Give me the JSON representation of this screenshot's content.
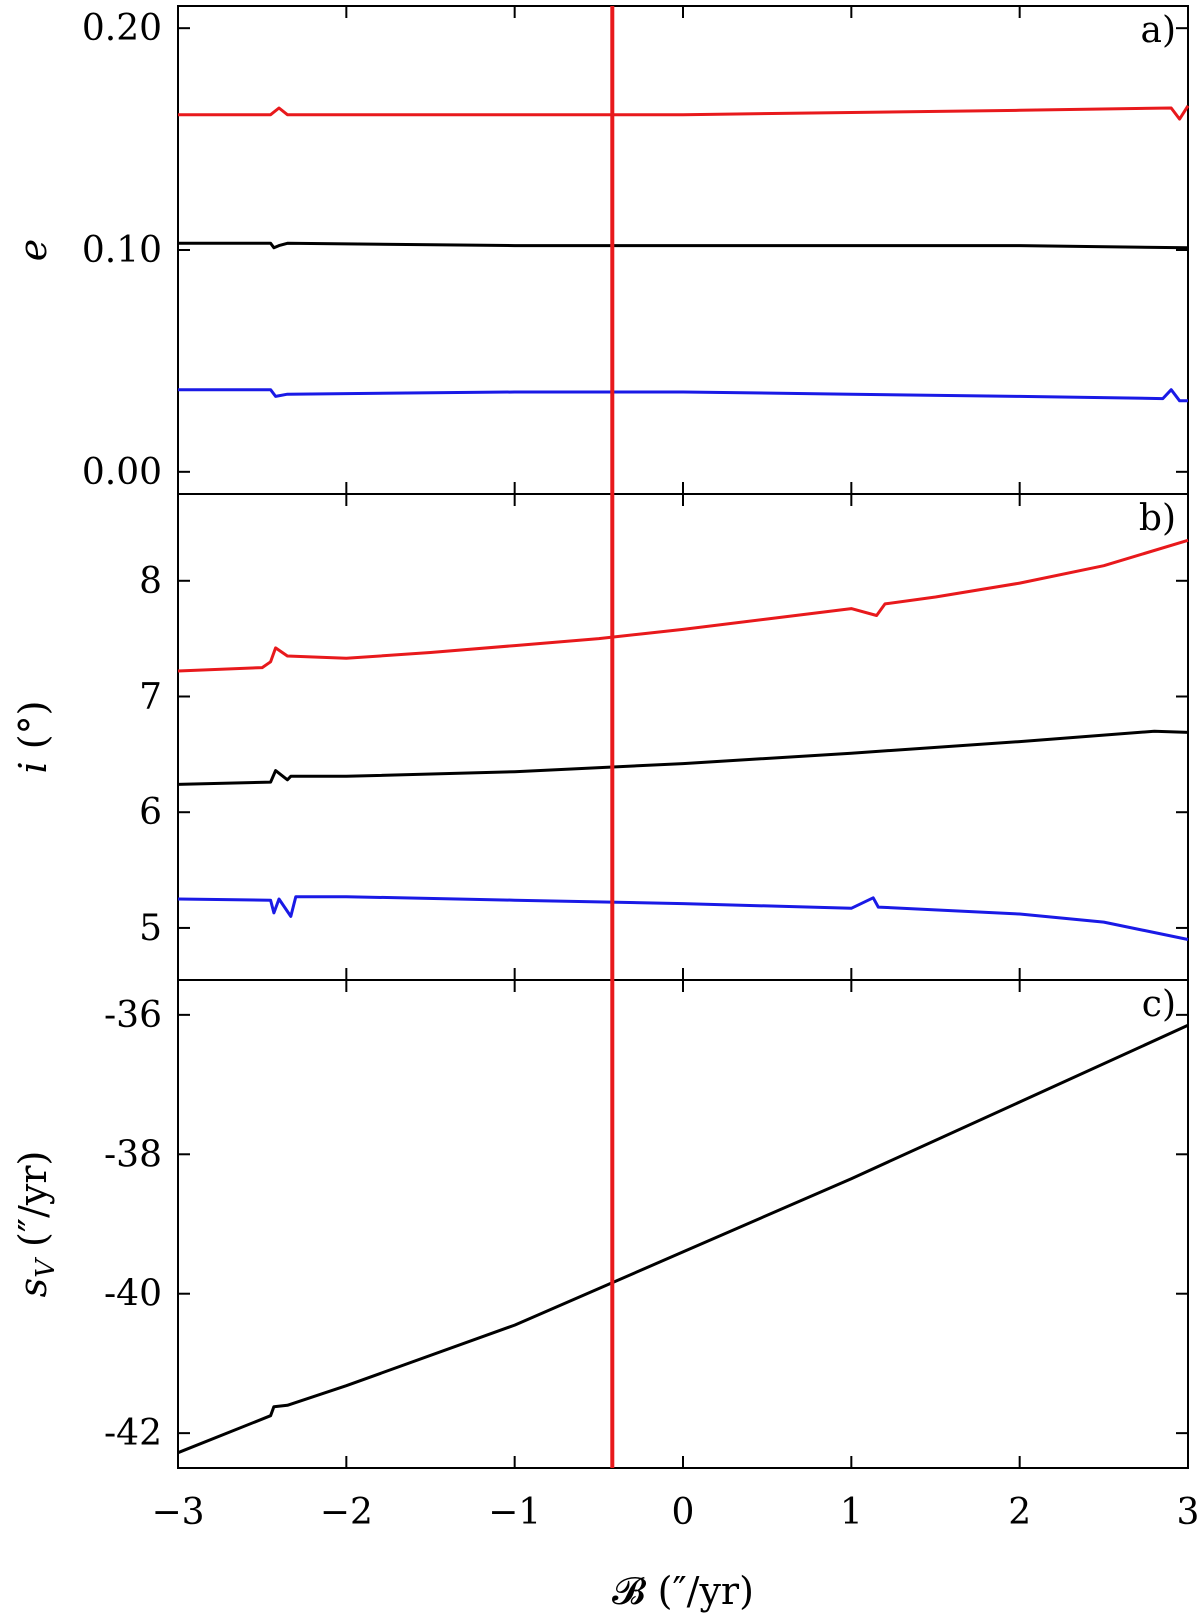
{
  "chart_data": [
    {
      "type": "line",
      "panel_label": "a)",
      "ylabel": "e",
      "xlim": [
        -3,
        3
      ],
      "ylim": [
        -0.01,
        0.21
      ],
      "yticks": [
        0.0,
        0.1,
        0.2
      ],
      "ytick_labels": [
        "0.00",
        "0.10",
        "0.20"
      ],
      "series": [
        {
          "color": "#e8191c",
          "x": [
            -3,
            -2.45,
            -2.4,
            -2.35,
            -1,
            0,
            1,
            2,
            2.9,
            2.95,
            3
          ],
          "y": [
            0.161,
            0.161,
            0.164,
            0.161,
            0.161,
            0.161,
            0.162,
            0.163,
            0.164,
            0.159,
            0.165
          ]
        },
        {
          "color": "#000000",
          "x": [
            -3,
            -2.45,
            -2.43,
            -2.4,
            -2.35,
            -1,
            0,
            1,
            2,
            3
          ],
          "y": [
            0.103,
            0.103,
            0.101,
            0.102,
            0.103,
            0.102,
            0.102,
            0.102,
            0.102,
            0.101
          ]
        },
        {
          "color": "#1a1ae6",
          "x": [
            -3,
            -2.45,
            -2.42,
            -2.35,
            -1,
            0,
            1,
            2,
            2.85,
            2.9,
            2.95,
            3
          ],
          "y": [
            0.037,
            0.037,
            0.034,
            0.035,
            0.036,
            0.036,
            0.035,
            0.034,
            0.033,
            0.037,
            0.032,
            0.032
          ]
        }
      ]
    },
    {
      "type": "line",
      "panel_label": "b)",
      "ylabel": "i (°)",
      "xlim": [
        -3,
        3
      ],
      "ylim": [
        4.55,
        8.75
      ],
      "yticks": [
        5,
        6,
        7,
        8
      ],
      "ytick_labels": [
        "5",
        "6",
        "7",
        "8"
      ],
      "series": [
        {
          "color": "#e8191c",
          "x": [
            -3,
            -2.5,
            -2.45,
            -2.42,
            -2.35,
            -2,
            -1.5,
            -1,
            -0.5,
            0,
            0.5,
            1,
            1.15,
            1.2,
            1.5,
            2,
            2.5,
            3
          ],
          "y": [
            7.22,
            7.25,
            7.3,
            7.42,
            7.35,
            7.33,
            7.38,
            7.44,
            7.5,
            7.58,
            7.67,
            7.76,
            7.7,
            7.8,
            7.86,
            7.98,
            8.13,
            8.35
          ]
        },
        {
          "color": "#000000",
          "x": [
            -3,
            -2.45,
            -2.42,
            -2.35,
            -2.33,
            -2,
            -1,
            0,
            1,
            2,
            2.8,
            3
          ],
          "y": [
            6.24,
            6.26,
            6.36,
            6.28,
            6.31,
            6.31,
            6.35,
            6.42,
            6.51,
            6.61,
            6.7,
            6.69
          ]
        },
        {
          "color": "#1a1ae6",
          "x": [
            -3,
            -2.45,
            -2.43,
            -2.4,
            -2.33,
            -2.3,
            -2,
            -1,
            0,
            1,
            1.13,
            1.16,
            2,
            2.5,
            3
          ],
          "y": [
            5.25,
            5.24,
            5.13,
            5.25,
            5.1,
            5.27,
            5.27,
            5.24,
            5.21,
            5.17,
            5.26,
            5.18,
            5.12,
            5.05,
            4.9
          ]
        }
      ]
    },
    {
      "type": "line",
      "panel_label": "c)",
      "ylabel": "sV (″/yr)",
      "xlabel": "𝓑 (″/yr)",
      "xlim": [
        -3,
        3
      ],
      "ylim": [
        -42.5,
        -35.5
      ],
      "yticks": [
        -42,
        -40,
        -38,
        -36
      ],
      "ytick_labels": [
        "-42",
        "-40",
        "-38",
        "-36"
      ],
      "xticks": [
        -3,
        -2,
        -1,
        0,
        1,
        2,
        3
      ],
      "xtick_labels": [
        "−3",
        "−2",
        "−1",
        "0",
        "1",
        "2",
        "3"
      ],
      "series": [
        {
          "color": "#000000",
          "x": [
            -3,
            -2.45,
            -2.43,
            -2.35,
            -2,
            -1,
            0,
            1,
            2,
            3
          ],
          "y": [
            -42.28,
            -41.75,
            -41.62,
            -41.6,
            -41.32,
            -40.45,
            -39.4,
            -38.35,
            -37.25,
            -36.15
          ]
        }
      ]
    }
  ],
  "marker_line": {
    "x": -0.42,
    "color": "#e8191c"
  }
}
